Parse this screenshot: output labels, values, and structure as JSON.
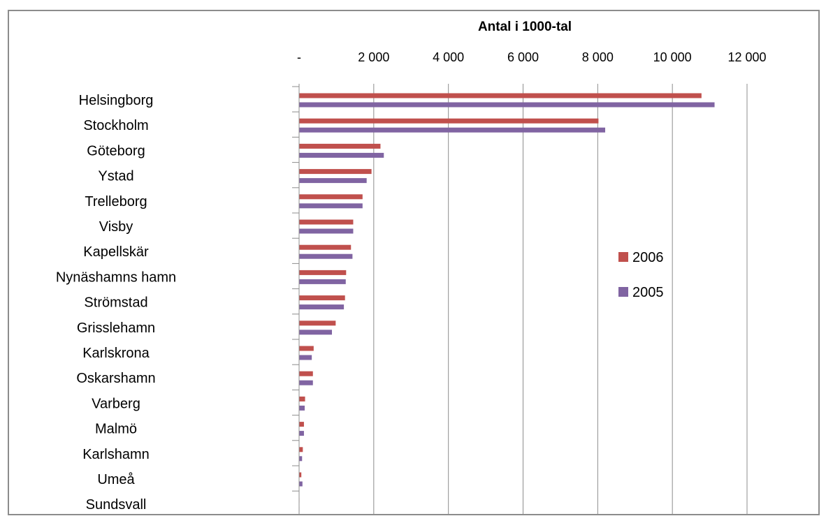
{
  "chart_data": {
    "type": "bar",
    "orientation": "horizontal",
    "title": "Antal i 1000-tal",
    "xlabel": "",
    "ylabel": "",
    "xlim": [
      0,
      12000
    ],
    "xticks": [
      0,
      2000,
      4000,
      6000,
      8000,
      10000,
      12000
    ],
    "xtick_labels": [
      "-",
      "2 000",
      "4 000",
      "6 000",
      "8 000",
      "10 000",
      "12 000"
    ],
    "categories": [
      "Helsingborg",
      "Stockholm",
      "Göteborg",
      "Ystad",
      "Trelleborg",
      "Visby",
      "Kapellskär",
      "Nynäshamns hamn",
      "Strömstad",
      "Grisslehamn",
      "Karlskrona",
      "Oskarshamn",
      "Varberg",
      "Malmö",
      "Karlshamn",
      "Umeå",
      "Sundsvall"
    ],
    "series": [
      {
        "name": "2006",
        "color": "#c0504d",
        "values": [
          10780,
          8020,
          2180,
          1940,
          1700,
          1450,
          1390,
          1260,
          1230,
          980,
          390,
          370,
          160,
          130,
          100,
          60,
          10
        ]
      },
      {
        "name": "2005",
        "color": "#8064a2",
        "values": [
          11130,
          8200,
          2270,
          1810,
          1700,
          1450,
          1430,
          1250,
          1200,
          880,
          340,
          370,
          150,
          130,
          80,
          90,
          10
        ]
      }
    ],
    "grid": "vertical",
    "legend_position": "right"
  }
}
